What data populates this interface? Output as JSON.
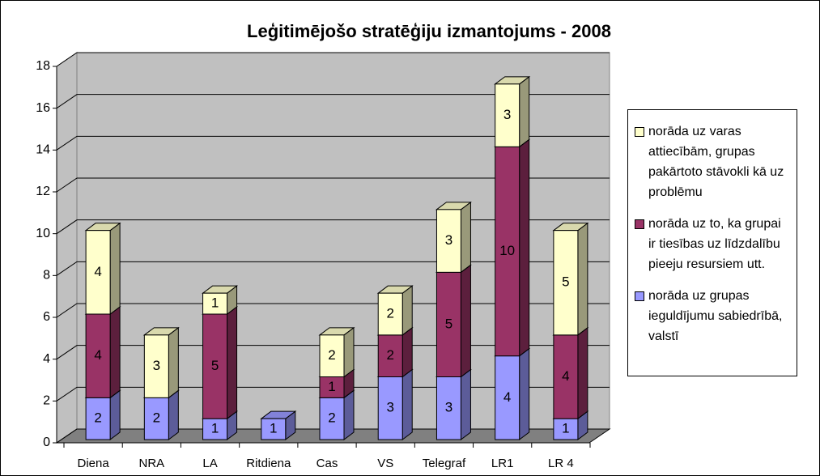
{
  "chart_data": {
    "type": "bar",
    "stacked": true,
    "title": "Leģitimējošo stratēģiju izmantojums - 2008",
    "categories": [
      "Diena",
      "NRA",
      "LA",
      "Ritdiena",
      "Cas",
      "VS",
      "Telegraf",
      "LR1",
      "LR 4"
    ],
    "series": [
      {
        "name": "norāda uz grupas ieguldījumu sabiedrībā, valstī",
        "color": "#9999ff",
        "values": [
          2,
          2,
          1,
          1,
          2,
          3,
          3,
          4,
          1
        ]
      },
      {
        "name": "norāda uz to, ka grupai ir tiesības uz līdzdalību pieeju resursiem utt.",
        "color": "#993366",
        "values": [
          4,
          0,
          5,
          0,
          1,
          2,
          5,
          10,
          4
        ]
      },
      {
        "name": "norāda uz varas attiecībām, grupas pakārtoto stāvokli kā uz problēmu",
        "color": "#ffffcc",
        "values": [
          4,
          3,
          1,
          0,
          2,
          2,
          3,
          3,
          5
        ]
      }
    ],
    "ylim": [
      0,
      18
    ],
    "yticks": [
      0,
      2,
      4,
      6,
      8,
      10,
      12,
      14,
      16,
      18
    ],
    "grid": true,
    "legend": "right"
  }
}
